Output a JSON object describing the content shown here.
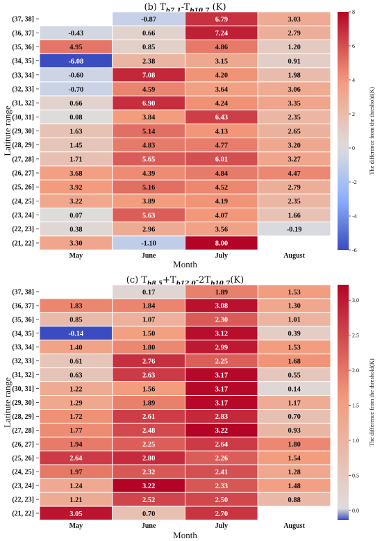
{
  "chart_data": [
    {
      "type": "heatmap",
      "title_parts": [
        "(b) T",
        "b7.1",
        "-T",
        "b10.7",
        " (K)"
      ],
      "xlabel": "Month",
      "ylabel": "Latitute range",
      "x_categories": [
        "May",
        "June",
        "July",
        "August"
      ],
      "y_categories": [
        "(37, 38]",
        "(36, 37]",
        "(35, 36]",
        "(34, 35]",
        "(33, 34]",
        "(32, 33]",
        "(31, 32]",
        "(30, 31]",
        "(29, 30]",
        "(28, 29]",
        "(27, 28]",
        "(26, 27]",
        "(25, 26]",
        "(24, 25]",
        "(23, 24]",
        "(22, 23]",
        "(21, 22]"
      ],
      "values": [
        [
          null,
          -0.87,
          6.79,
          3.03
        ],
        [
          -0.43,
          0.66,
          7.24,
          2.79
        ],
        [
          4.95,
          0.85,
          4.86,
          1.2
        ],
        [
          -6.08,
          2.38,
          3.15,
          0.91
        ],
        [
          -0.6,
          7.08,
          4.2,
          1.98
        ],
        [
          -0.7,
          4.59,
          3.64,
          3.06
        ],
        [
          0.66,
          6.9,
          4.24,
          3.35
        ],
        [
          0.08,
          3.84,
          6.43,
          2.35
        ],
        [
          1.63,
          5.14,
          4.13,
          2.65
        ],
        [
          1.45,
          4.83,
          4.77,
          3.2
        ],
        [
          1.71,
          5.65,
          6.01,
          3.27
        ],
        [
          3.68,
          4.39,
          4.84,
          4.47
        ],
        [
          3.92,
          5.16,
          4.52,
          2.79
        ],
        [
          3.22,
          3.89,
          4.19,
          2.35
        ],
        [
          0.07,
          5.63,
          4.07,
          1.66
        ],
        [
          0.38,
          2.96,
          3.56,
          -0.19
        ],
        [
          3.3,
          -1.1,
          8.0,
          null
        ]
      ],
      "value_labels": [
        [
          "",
          "-0.87",
          "6.79",
          "3.03"
        ],
        [
          "-0.43",
          "0.66",
          "7.24",
          "2.79"
        ],
        [
          "4.95",
          "0.85",
          "4.86",
          "1.20"
        ],
        [
          "-6.08",
          "2.38",
          "3.15",
          "0.91"
        ],
        [
          "-0.60",
          "7.08",
          "4.20",
          "1.98"
        ],
        [
          "-0.70",
          "4.59",
          "3.64",
          "3.06"
        ],
        [
          "0.66",
          "6.90",
          "4.24",
          "3.35"
        ],
        [
          "0.08",
          "3.84",
          "6.43",
          "2.35"
        ],
        [
          "1.63",
          "5.14",
          "4.13",
          "2.65"
        ],
        [
          "1.45",
          "4.83",
          "4.77",
          "3.20"
        ],
        [
          "1.71",
          "5.65",
          "6.01",
          "3.27"
        ],
        [
          "3.68",
          "4.39",
          "4.84",
          "4.47"
        ],
        [
          "3.92",
          "5.16",
          "4.52",
          "2.79"
        ],
        [
          "3.22",
          "3.89",
          "4.19",
          "2.35"
        ],
        [
          "0.07",
          "5.63",
          "4.07",
          "1.66"
        ],
        [
          "0.38",
          "2.96",
          "3.56",
          "-0.19"
        ],
        [
          "3.30",
          "-1.10",
          "8.00",
          ""
        ]
      ],
      "vmin": -6,
      "vmax": 8,
      "colorbar_ticks": [
        -6,
        -4,
        -2,
        0,
        2,
        4,
        6,
        8
      ],
      "colorbar_tick_labels": [
        "-6",
        "-4",
        "-2",
        "0",
        "2",
        "4",
        "6",
        "8"
      ],
      "colorbar_label": "The difference from the threshold(K)",
      "colormap": "coolwarm",
      "grid_color": "#ffffff"
    },
    {
      "type": "heatmap",
      "title_parts": [
        "(c) T",
        "b8.5",
        "+T",
        "b12.0",
        "-2T",
        "b10.7",
        "(K)"
      ],
      "xlabel": "Month",
      "ylabel": "Latitute range",
      "x_categories": [
        "May",
        "June",
        "July",
        "August"
      ],
      "y_categories": [
        "(37, 38]",
        "(36, 37]",
        "(35, 36]",
        "(34, 35]",
        "(33, 34]",
        "(32, 33]",
        "(31, 32]",
        "(30, 31]",
        "(29, 30]",
        "(28, 29]",
        "(27, 28]",
        "(26, 27]",
        "(25, 26]",
        "(24, 25]",
        "(23, 24]",
        "(22, 23]",
        "(21, 22]"
      ],
      "values": [
        [
          null,
          0.17,
          1.89,
          1.53
        ],
        [
          1.83,
          1.84,
          3.08,
          1.3
        ],
        [
          0.85,
          1.07,
          2.3,
          1.01
        ],
        [
          -0.14,
          1.5,
          3.12,
          0.39
        ],
        [
          1.4,
          1.8,
          2.99,
          1.53
        ],
        [
          0.61,
          2.76,
          2.25,
          1.68
        ],
        [
          0.63,
          2.63,
          3.17,
          0.55
        ],
        [
          1.22,
          1.56,
          3.17,
          0.14
        ],
        [
          1.29,
          1.89,
          3.17,
          1.17
        ],
        [
          1.72,
          2.61,
          2.83,
          0.7
        ],
        [
          1.77,
          2.48,
          3.22,
          0.93
        ],
        [
          1.94,
          2.25,
          2.64,
          1.8
        ],
        [
          2.64,
          2.8,
          2.26,
          1.54
        ],
        [
          1.97,
          2.32,
          2.41,
          1.28
        ],
        [
          1.24,
          3.22,
          2.33,
          1.48
        ],
        [
          1.21,
          2.52,
          2.5,
          0.88
        ],
        [
          3.05,
          0.7,
          2.7,
          null
        ]
      ],
      "value_labels": [
        [
          "",
          "0.17",
          "1.89",
          "1.53"
        ],
        [
          "1.83",
          "1.84",
          "3.08",
          "1.30"
        ],
        [
          "0.85",
          "1.07",
          "2.30",
          "1.01"
        ],
        [
          "-0.14",
          "1.50",
          "3.12",
          "0.39"
        ],
        [
          "1.40",
          "1.80",
          "2.99",
          "1.53"
        ],
        [
          "0.61",
          "2.76",
          "2.25",
          "1.68"
        ],
        [
          "0.63",
          "2.63",
          "3.17",
          "0.55"
        ],
        [
          "1.22",
          "1.56",
          "3.17",
          "0.14"
        ],
        [
          "1.29",
          "1.89",
          "3.17",
          "1.17"
        ],
        [
          "1.72",
          "2.61",
          "2.83",
          "0.70"
        ],
        [
          "1.77",
          "2.48",
          "3.22",
          "0.93"
        ],
        [
          "1.94",
          "2.25",
          "2.64",
          "1.80"
        ],
        [
          "2.64",
          "2.80",
          "2.26",
          "1.54"
        ],
        [
          "1.97",
          "2.32",
          "2.41",
          "1.28"
        ],
        [
          "1.24",
          "3.22",
          "2.33",
          "1.48"
        ],
        [
          "1.21",
          "2.52",
          "2.50",
          "0.88"
        ],
        [
          "3.05",
          "0.70",
          "2.70",
          ""
        ]
      ],
      "vmin": -0.14,
      "vmax": 3.22,
      "colorbar_ticks": [
        0.0,
        0.5,
        1.0,
        1.5,
        2.0,
        2.5,
        3.0
      ],
      "colorbar_tick_labels": [
        "0.0",
        "0.5",
        "1.0",
        "1.5",
        "2.0",
        "2.5",
        "3.0"
      ],
      "colorbar_label": "The difference from the threshold(K)",
      "colormap": "coolwarm",
      "grid_color": "#ffffff"
    }
  ]
}
